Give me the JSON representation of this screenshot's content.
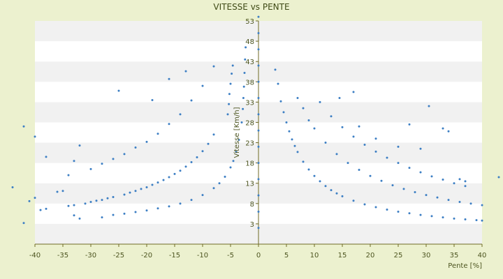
{
  "chart_data": {
    "type": "scatter",
    "title": "VITESSE vs PENTE",
    "xlabel": "Pente [%]",
    "ylabel": "Vitesse [Km/h]",
    "xlim": [
      -40,
      40
    ],
    "ylim": [
      -2,
      53
    ],
    "x_ticks": [
      "-40",
      "-35",
      "-30",
      "-25",
      "-20",
      "-15",
      "-10",
      "-5",
      "0",
      "5",
      "10",
      "15",
      "20",
      "25",
      "30",
      "35",
      "40"
    ],
    "y_ticks": [
      "3",
      "8",
      "13",
      "18",
      "23",
      "28",
      "33",
      "38",
      "43",
      "48",
      "53"
    ],
    "grid": "horizontal bands (alternating white / light gray)",
    "legend": "none",
    "marker_color": "#3d7fc4",
    "series": [
      {
        "values": [
          [
            -42.0,
            3.2
          ],
          [
            -41.0,
            8.6
          ],
          [
            -40.0,
            9.4
          ],
          [
            -39.0,
            6.4
          ],
          [
            -38.0,
            6.7
          ],
          [
            -34.0,
            7.4
          ],
          [
            -33.0,
            7.6
          ],
          [
            -31.0,
            8.0
          ],
          [
            -30.0,
            8.4
          ],
          [
            -29.0,
            8.7
          ],
          [
            -28.0,
            8.9
          ],
          [
            -27.0,
            9.3
          ],
          [
            -26.0,
            9.6
          ],
          [
            -24.0,
            10.2
          ],
          [
            -23.0,
            10.7
          ],
          [
            -22.0,
            11.1
          ],
          [
            -21.0,
            11.6
          ],
          [
            -20.0,
            12.0
          ],
          [
            -19.0,
            12.6
          ],
          [
            -18.0,
            13.2
          ],
          [
            -17.0,
            13.8
          ],
          [
            -16.0,
            14.5
          ],
          [
            -15.0,
            15.3
          ],
          [
            -14.0,
            16.1
          ],
          [
            -13.0,
            17.1
          ],
          [
            -12.0,
            18.2
          ],
          [
            -11.0,
            19.4
          ],
          [
            -10.0,
            20.9
          ],
          [
            -9.0,
            22.7
          ],
          [
            -8.0,
            25.0
          ],
          [
            -33.0,
            5.1
          ],
          [
            -32.0,
            4.3
          ],
          [
            -28.0,
            4.6
          ],
          [
            -26.0,
            5.2
          ],
          [
            -24.0,
            5.5
          ],
          [
            -22.0,
            5.9
          ],
          [
            -20.0,
            6.3
          ],
          [
            -18.0,
            6.8
          ],
          [
            -16.0,
            7.3
          ],
          [
            -14.0,
            8.0
          ],
          [
            -12.0,
            8.9
          ],
          [
            -10.0,
            10.1
          ],
          [
            -8.0,
            11.8
          ],
          [
            -7.0,
            13.0
          ],
          [
            -6.0,
            14.6
          ],
          [
            -5.0,
            16.9
          ],
          [
            -4.5,
            18.5
          ],
          [
            -4.0,
            20.7
          ],
          [
            -3.5,
            23.7
          ],
          [
            -3.0,
            28.0
          ],
          [
            -2.8,
            31.3
          ],
          [
            -2.7,
            34.0
          ],
          [
            -2.6,
            36.8
          ],
          [
            -2.5,
            40.2
          ],
          [
            -2.4,
            43.5
          ],
          [
            -2.3,
            46.5
          ],
          [
            -36.0,
            10.9
          ],
          [
            -35.0,
            11.1
          ],
          [
            -34.0,
            15.0
          ],
          [
            -33.0,
            18.5
          ],
          [
            -32.0,
            22.3
          ],
          [
            -30.0,
            16.5
          ],
          [
            -28.0,
            17.8
          ],
          [
            -26.0,
            19.0
          ],
          [
            -24.0,
            20.2
          ],
          [
            -22.0,
            21.8
          ],
          [
            -20.0,
            23.2
          ],
          [
            -18.0,
            25.2
          ],
          [
            -16.0,
            27.6
          ],
          [
            -14.0,
            30.0
          ],
          [
            -12.0,
            33.4
          ],
          [
            -10.0,
            37.0
          ],
          [
            -8.0,
            41.8
          ],
          [
            -5.5,
            30.0
          ],
          [
            -5.3,
            32.5
          ],
          [
            -5.2,
            35.0
          ],
          [
            -5.0,
            37.5
          ],
          [
            -4.8,
            40.0
          ],
          [
            -4.6,
            42.0
          ],
          [
            -25.0,
            35.8
          ],
          [
            -19.0,
            33.5
          ],
          [
            -16.0,
            38.7
          ],
          [
            -13.0,
            40.6
          ],
          [
            -42.0,
            27.0
          ],
          [
            -40.0,
            24.5
          ],
          [
            -38.0,
            19.5
          ],
          [
            -44.0,
            12.0
          ],
          [
            3.0,
            41.0
          ],
          [
            3.5,
            37.5
          ],
          [
            4.0,
            33.2
          ],
          [
            4.5,
            30.5
          ],
          [
            5.0,
            28.0
          ],
          [
            5.5,
            25.8
          ],
          [
            6.0,
            23.8
          ],
          [
            6.5,
            22.2
          ],
          [
            7.0,
            20.7
          ],
          [
            8.0,
            18.3
          ],
          [
            9.0,
            16.4
          ],
          [
            10.0,
            14.8
          ],
          [
            11.0,
            13.5
          ],
          [
            12.0,
            12.3
          ],
          [
            13.0,
            11.3
          ],
          [
            14.0,
            10.5
          ],
          [
            15.0,
            9.8
          ],
          [
            17.0,
            8.7
          ],
          [
            19.0,
            7.8
          ],
          [
            21.0,
            7.1
          ],
          [
            23.0,
            6.5
          ],
          [
            25.0,
            6.0
          ],
          [
            27.0,
            5.6
          ],
          [
            29.0,
            5.2
          ],
          [
            31.0,
            4.9
          ],
          [
            33.0,
            4.6
          ],
          [
            35.0,
            4.3
          ],
          [
            37.0,
            4.1
          ],
          [
            39.0,
            3.9
          ],
          [
            40.0,
            3.8
          ],
          [
            7.0,
            34.0
          ],
          [
            8.0,
            31.5
          ],
          [
            9.0,
            28.5
          ],
          [
            10.0,
            26.5
          ],
          [
            12.0,
            23.0
          ],
          [
            14.0,
            20.2
          ],
          [
            16.0,
            18.0
          ],
          [
            18.0,
            16.3
          ],
          [
            20.0,
            14.8
          ],
          [
            22.0,
            13.6
          ],
          [
            24.0,
            12.5
          ],
          [
            26.0,
            11.6
          ],
          [
            28.0,
            10.8
          ],
          [
            30.0,
            10.1
          ],
          [
            32.0,
            9.5
          ],
          [
            34.0,
            8.9
          ],
          [
            36.0,
            8.4
          ],
          [
            38.0,
            8.0
          ],
          [
            40.0,
            7.6
          ],
          [
            11.0,
            33.0
          ],
          [
            13.0,
            29.5
          ],
          [
            15.0,
            26.8
          ],
          [
            17.0,
            24.5
          ],
          [
            19.0,
            22.5
          ],
          [
            21.0,
            20.8
          ],
          [
            23.0,
            19.3
          ],
          [
            25.0,
            18.0
          ],
          [
            27.0,
            16.8
          ],
          [
            29.0,
            15.7
          ],
          [
            31.0,
            14.7
          ],
          [
            33.0,
            13.9
          ],
          [
            35.0,
            13.0
          ],
          [
            37.0,
            12.3
          ],
          [
            14.5,
            34.0
          ],
          [
            17.0,
            35.5
          ],
          [
            18.0,
            27.0
          ],
          [
            21.0,
            24.0
          ],
          [
            25.0,
            22.0
          ],
          [
            27.0,
            27.5
          ],
          [
            29.0,
            21.5
          ],
          [
            30.5,
            32.0
          ],
          [
            33.0,
            26.5
          ],
          [
            34.0,
            25.8
          ],
          [
            36.0,
            14.0
          ],
          [
            37.0,
            13.5
          ],
          [
            43.0,
            14.5
          ],
          [
            0.0,
            54.0
          ],
          [
            0.0,
            50.0
          ],
          [
            0.0,
            46.0
          ],
          [
            0.0,
            42.0
          ],
          [
            0.0,
            38.0
          ],
          [
            0.0,
            34.0
          ],
          [
            0.0,
            30.0
          ],
          [
            0.0,
            26.0
          ],
          [
            0.0,
            22.0
          ],
          [
            0.0,
            18.0
          ],
          [
            0.0,
            14.0
          ],
          [
            0.0,
            10.0
          ],
          [
            0.0,
            6.0
          ],
          [
            0.0,
            2.0
          ]
        ]
      }
    ]
  }
}
